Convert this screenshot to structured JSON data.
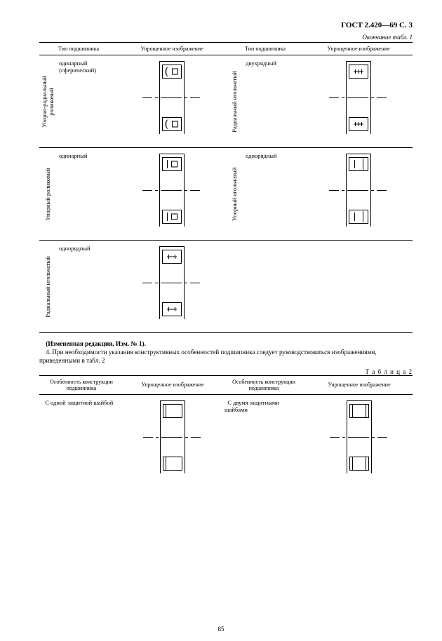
{
  "header": {
    "docnum": "ГОСТ 2.420—69  С. 3",
    "continuation": "Окончание табл. 1"
  },
  "t1": {
    "headers": {
      "h1": "Тип подшипника",
      "h2": "Упрощенное изображение",
      "h3": "Тип подшипника",
      "h4": "Упрощенное изображение"
    },
    "row1": {
      "cat_l": "Упорно-радиальный\nроликовый",
      "desc_l": "одинарный (сферический)",
      "cat_r": "Радиальный игольчатый",
      "desc_r": "двухрядный"
    },
    "row2": {
      "cat_l": "Упорный роликовый",
      "desc_l": "одинарный",
      "cat_r": "Упорный игольчатый",
      "desc_r": "однорядный"
    },
    "row3": {
      "cat_l": "Радиальный игольчатый",
      "desc_l": "однорядный"
    }
  },
  "para": {
    "bold": "(Измененная редакция, Изм. № 1).",
    "text": "4. При необходимости указания конструктивных особенностей подшипника следует руководствоваться изображениями, приведенными в табл. 2"
  },
  "t2label": "Т а б л и ц а  2",
  "t2": {
    "headers": {
      "h1": "Особенность конструкции подшипника",
      "h2": "Упрощенное изображение",
      "h3": "Особенность конструкции подшипника",
      "h4": "Упрощенное изображение"
    },
    "row1": {
      "desc_l": "С одной защитной шайбой",
      "desc_r": "С двумя защитными шайбами"
    }
  },
  "pagenum": "85",
  "colors": {
    "ink": "#000000",
    "bg": "#ffffff"
  }
}
